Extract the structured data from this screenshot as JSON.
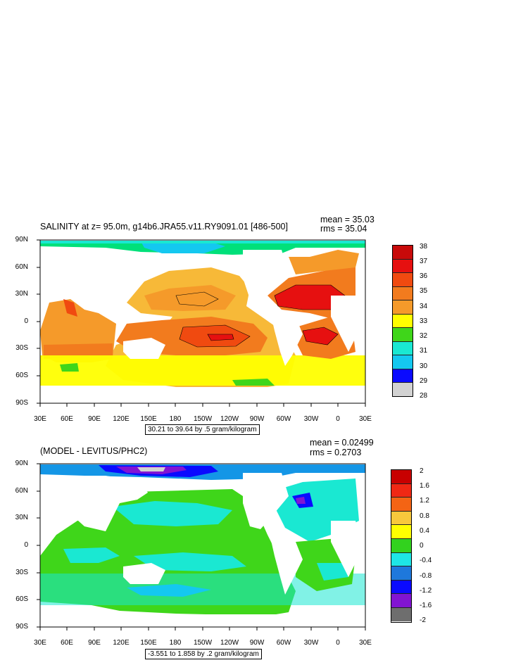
{
  "panel_top": {
    "title": "SALINITY at z=  95.0m, g14b6.JRA55.v11.RY9091.01 [486-500]",
    "mean": "mean = 35.03",
    "rms": "rms = 35.04",
    "range": "30.21 to 39.64 by .5 gram/kilogram",
    "lat_labels": [
      "90N",
      "60N",
      "30N",
      "0",
      "30S",
      "60S",
      "90S"
    ],
    "lon_labels": [
      "30E",
      "60E",
      "90E",
      "120E",
      "150E",
      "180",
      "150W",
      "120W",
      "90W",
      "60W",
      "30W",
      "0",
      "30E"
    ],
    "colorbar_labels": [
      "38",
      "37",
      "36",
      "35",
      "35",
      "34",
      "33",
      "32",
      "31",
      "30",
      "29",
      "28"
    ],
    "colorbar_colors": [
      "#a50000",
      "#e61010",
      "#f04a10",
      "#f27b1e",
      "#f59a2a",
      "#f7b938",
      "#ffff00",
      "#3fd61a",
      "#00e07a",
      "#1ae8d2",
      "#14c8f0",
      "#1496e6",
      "#0a0aff",
      "#7a14d6",
      "#e614c8",
      "#d2d2d2",
      "#646464"
    ]
  },
  "panel_bottom": {
    "title": "(MODEL - LEVITUS/PHC2)",
    "mean": "mean = 0.02499",
    "rms": "rms = 0.2703",
    "range": "-3.551 to 1.858 by .2 gram/kilogram",
    "lat_labels": [
      "90N",
      "60N",
      "30N",
      "0",
      "30S",
      "60S",
      "90S"
    ],
    "lon_labels": [
      "30E",
      "60E",
      "90E",
      "120E",
      "150E",
      "180",
      "150W",
      "120W",
      "90W",
      "60W",
      "30W",
      "0",
      "30E"
    ],
    "colorbar_labels": [
      "2",
      "1.6",
      "1.2",
      "0.8",
      "0.4",
      "0",
      "-0.4",
      "-0.8",
      "-1.2",
      "-1.6",
      "-2"
    ],
    "colorbar_colors": [
      "#c80000",
      "#f02814",
      "#f46414",
      "#f6961e",
      "#f8c83c",
      "#ffff00",
      "#32d21e",
      "#00e678",
      "#1ee6e6",
      "#14b4f0",
      "#1e78dc",
      "#0a0aff",
      "#8214d2",
      "#e61ec8",
      "#e6e6e6",
      "#6e6e6e"
    ]
  }
}
